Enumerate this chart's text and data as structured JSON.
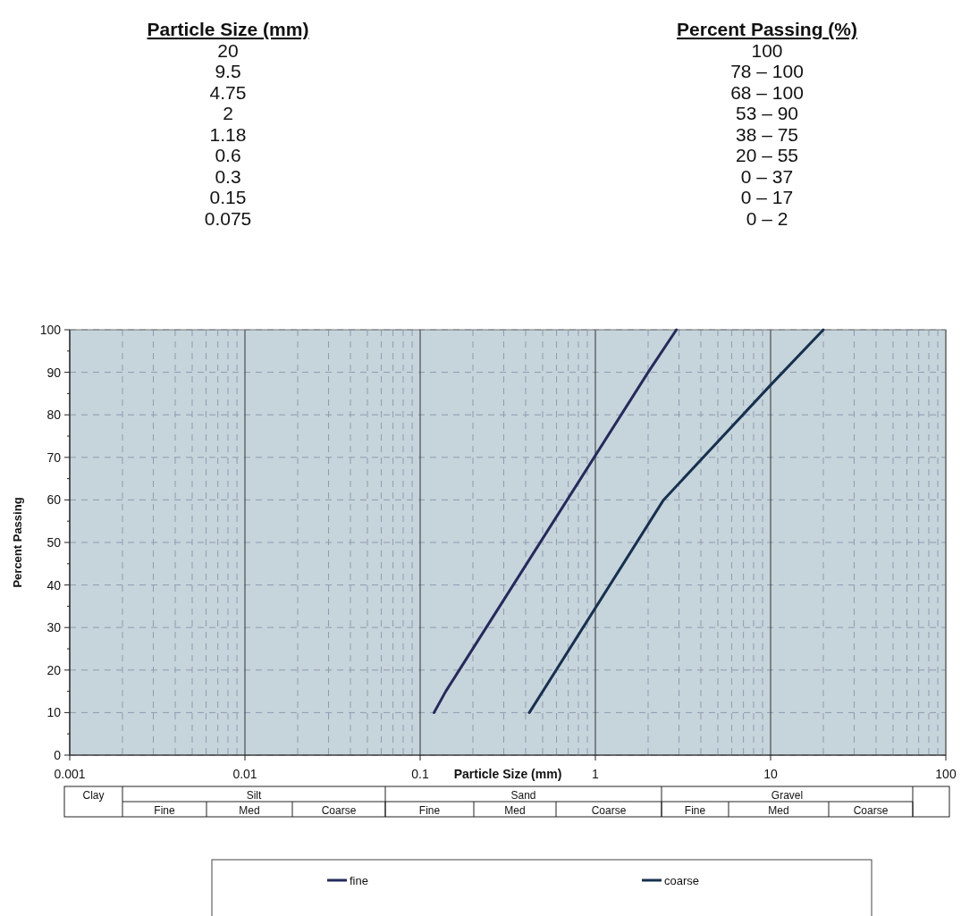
{
  "chart_data": [
    {
      "type": "other",
      "annotations": [
        "Particle Size (mm)",
        "Percent Passing (%)",
        "20",
        "100",
        "9.5",
        "78 – 100",
        "4.75",
        "68 – 100",
        "2",
        "53 – 90",
        "1.18",
        "38 – 75",
        "0.6",
        "20 – 55",
        "0.3",
        "0 – 37",
        "0.15",
        "0 – 17",
        "0.075",
        "0 – 2"
      ]
    },
    {
      "type": "line",
      "xlabel": "Particle Size (mm)",
      "ylabel": "Percent Passing",
      "log": "x",
      "xlim": [
        0.001,
        100
      ],
      "xticks": [
        0.001,
        0.01,
        0.1,
        1,
        10,
        100
      ],
      "ylim": [
        0,
        100
      ],
      "yticks": [
        0,
        10,
        20,
        30,
        40,
        50,
        60,
        70,
        80,
        90,
        100
      ],
      "grid": true,
      "legend": "bottom",
      "line_style": "solid",
      "series": [
        {
          "name": "fine",
          "color": "#252a5c",
          "x": [
            0.12,
            0.14,
            2,
            2.9
          ],
          "values": [
            10,
            15,
            90,
            100
          ]
        },
        {
          "name": "coarse",
          "color": "#17304f",
          "x": [
            0.42,
            2.45,
            10,
            20
          ],
          "values": [
            10,
            60,
            87,
            100
          ]
        }
      ],
      "annotations": [
        "Clay",
        "Silt",
        "Sand",
        "Gravel",
        "Fine",
        "Med",
        "Coarse",
        "Fine",
        "Med",
        "Coarse",
        "Fine",
        "Med",
        "Coarse"
      ]
    }
  ]
}
